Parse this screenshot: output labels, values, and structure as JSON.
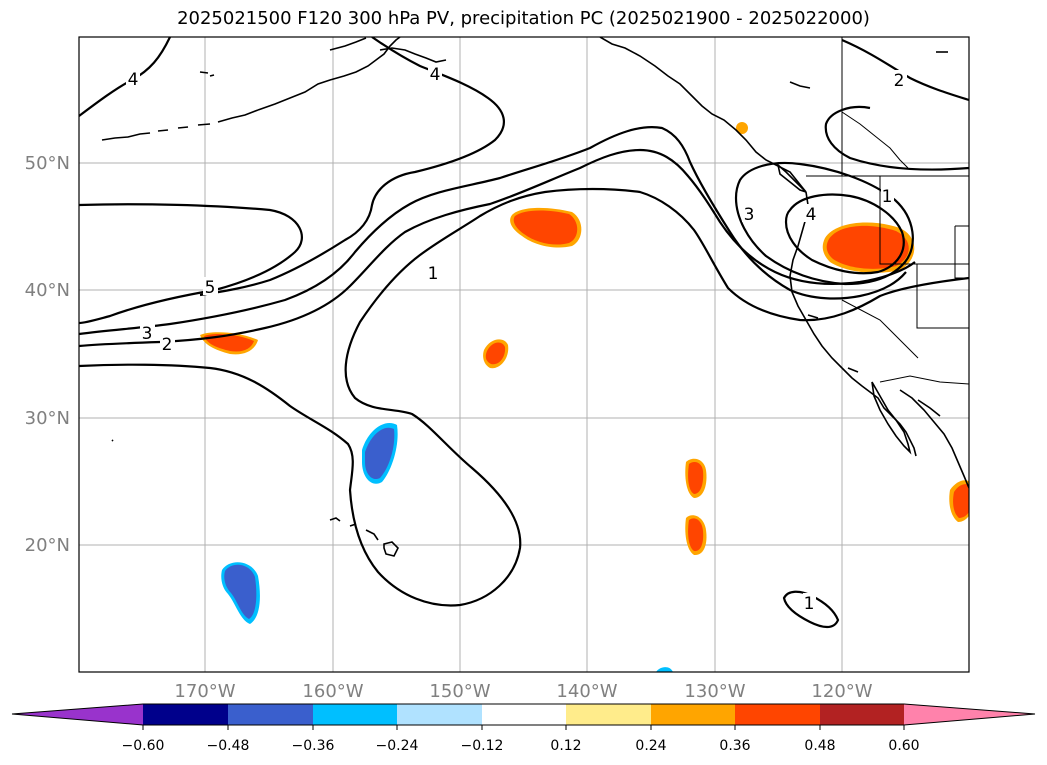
{
  "title": "2025021500 F120 300 hPa PV, precipitation PC (2025021900 - 2025022000)",
  "map": {
    "lat_labels": [
      "50°N",
      "40°N",
      "30°N",
      "20°N"
    ],
    "lon_labels": [
      "170°W",
      "160°W",
      "150°W",
      "140°W",
      "130°W",
      "120°W"
    ],
    "gridline_color": "#b0b0b0"
  },
  "pv_contour_labels": [
    "4",
    "4",
    "5",
    "3",
    "2",
    "1",
    "3",
    "4",
    "1",
    "2",
    "1"
  ],
  "colorbar": {
    "colors": [
      "#9933cc",
      "#00008b",
      "#3a5fcd",
      "#00bfff",
      "#b0e2ff",
      "#ffffff",
      "#ffec8b",
      "#ffa500",
      "#ff4500",
      "#b22222",
      "#ff82ab"
    ],
    "tick_labels": [
      "−0.60",
      "−0.48",
      "−0.36",
      "−0.24",
      "−0.12",
      "0.12",
      "0.24",
      "0.36",
      "0.48",
      "0.60"
    ]
  }
}
